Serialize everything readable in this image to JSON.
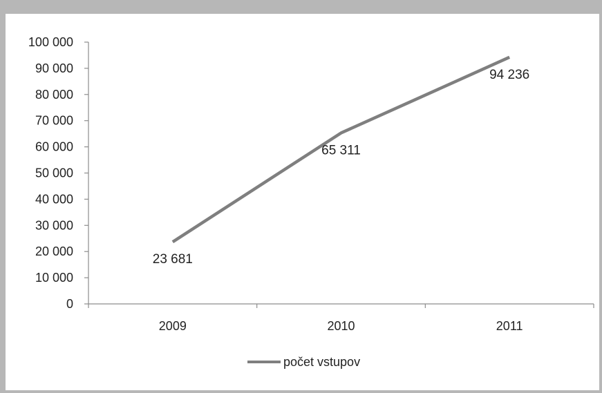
{
  "chart_data": {
    "type": "line",
    "title": "",
    "xlabel": "",
    "ylabel": "",
    "categories": [
      "2009",
      "2010",
      "2011"
    ],
    "series": [
      {
        "name": "počet vstupov",
        "values": [
          23681,
          65311,
          94236
        ],
        "color": "#7f7f7f",
        "data_labels": [
          "23 681",
          "65 311",
          "94 236"
        ]
      }
    ],
    "ylim": [
      0,
      100000
    ],
    "y_ticks": [
      0,
      10000,
      20000,
      30000,
      40000,
      50000,
      60000,
      70000,
      80000,
      90000,
      100000
    ],
    "y_tick_labels": [
      "0",
      "10 000",
      "20 000",
      "30 000",
      "40 000",
      "50 000",
      "60 000",
      "70 000",
      "80 000",
      "90 000",
      "100 000"
    ],
    "grid": false,
    "legend_position": "bottom"
  },
  "colors": {
    "frame": "#b7b7b7",
    "axis": "#8c8c8c",
    "line": "#7f7f7f"
  }
}
